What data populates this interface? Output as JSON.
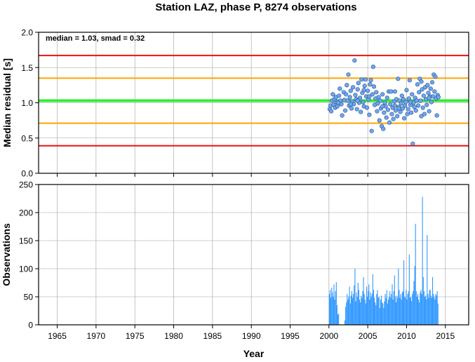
{
  "title": "Station LAZ, phase P, 8274 observations",
  "chart_data": [
    {
      "type": "scatter",
      "panel": "top",
      "ylabel": "Median residual [s]",
      "xlim": [
        1962.6,
        2018.0
      ],
      "ylim": [
        0.0,
        2.0
      ],
      "yticks": [
        0.0,
        0.5,
        1.0,
        1.5,
        2.0
      ],
      "ytick_labels": [
        "0.0",
        "0.5",
        "1.0",
        "1.5",
        "2.0"
      ],
      "grid": true,
      "annotation": "median = 1.03, smad = 0.32",
      "reference_lines": [
        {
          "y": 1.67,
          "color": "#ee1111"
        },
        {
          "y": 1.35,
          "color": "#ffa500"
        },
        {
          "y": 1.03,
          "color": "#33ee33"
        },
        {
          "y": 0.71,
          "color": "#ffa500"
        },
        {
          "y": 0.39,
          "color": "#ee1111"
        }
      ],
      "point_color": "#6ea6ee",
      "points": [
        [
          2000.1,
          0.91
        ],
        [
          2000.2,
          0.96
        ],
        [
          2000.3,
          0.88
        ],
        [
          2000.4,
          1.03
        ],
        [
          2000.5,
          1.12
        ],
        [
          2000.6,
          0.97
        ],
        [
          2000.7,
          1.05
        ],
        [
          2000.8,
          0.93
        ],
        [
          2000.9,
          1.08
        ],
        [
          2001.0,
          1.01
        ],
        [
          2001.1,
          0.95
        ],
        [
          2001.3,
          1.1
        ],
        [
          2001.4,
          1.2
        ],
        [
          2001.5,
          1.03
        ],
        [
          2001.6,
          0.98
        ],
        [
          2001.7,
          0.82
        ],
        [
          2001.9,
          1.15
        ],
        [
          2002.0,
          1.04
        ],
        [
          2002.1,
          0.89
        ],
        [
          2002.2,
          1.12
        ],
        [
          2002.3,
          1.25
        ],
        [
          2002.4,
          1.03
        ],
        [
          2002.5,
          1.4
        ],
        [
          2002.6,
          0.96
        ],
        [
          2002.7,
          1.08
        ],
        [
          2002.8,
          1.17
        ],
        [
          2002.9,
          0.92
        ],
        [
          2003.0,
          1.02
        ],
        [
          2003.1,
          1.22
        ],
        [
          2003.2,
          0.98
        ],
        [
          2003.3,
          1.6
        ],
        [
          2003.4,
          1.11
        ],
        [
          2003.5,
          1.05
        ],
        [
          2003.6,
          0.91
        ],
        [
          2003.7,
          1.19
        ],
        [
          2003.8,
          1.28
        ],
        [
          2003.9,
          1.0
        ],
        [
          2004.0,
          1.07
        ],
        [
          2004.1,
          0.87
        ],
        [
          2004.2,
          1.33
        ],
        [
          2004.3,
          1.14
        ],
        [
          2004.4,
          1.01
        ],
        [
          2004.5,
          0.95
        ],
        [
          2004.6,
          1.24
        ],
        [
          2004.7,
          1.33
        ],
        [
          2004.8,
          1.09
        ],
        [
          2004.9,
          0.93
        ],
        [
          2005.0,
          1.17
        ],
        [
          2005.1,
          1.05
        ],
        [
          2005.2,
          0.83
        ],
        [
          2005.3,
          1.26
        ],
        [
          2005.4,
          1.32
        ],
        [
          2005.5,
          0.6
        ],
        [
          2005.6,
          1.12
        ],
        [
          2005.7,
          1.51
        ],
        [
          2005.8,
          1.23
        ],
        [
          2005.9,
          0.97
        ],
        [
          2006.0,
          1.06
        ],
        [
          2006.1,
          1.15
        ],
        [
          2006.2,
          0.88
        ],
        [
          2006.3,
          0.99
        ],
        [
          2006.4,
          1.08
        ],
        [
          2006.5,
          0.75
        ],
        [
          2006.6,
          1.03
        ],
        [
          2006.7,
          0.92
        ],
        [
          2006.8,
          0.67
        ],
        [
          2006.9,
          1.12
        ],
        [
          2007.0,
          0.63
        ],
        [
          2007.1,
          0.86
        ],
        [
          2007.2,
          1.0
        ],
        [
          2007.3,
          0.95
        ],
        [
          2007.4,
          0.79
        ],
        [
          2007.5,
          1.07
        ],
        [
          2007.6,
          0.9
        ],
        [
          2007.7,
          1.16
        ],
        [
          2007.8,
          0.72
        ],
        [
          2007.9,
          0.98
        ],
        [
          2008.0,
          1.16
        ],
        [
          2008.1,
          0.84
        ],
        [
          2008.2,
          0.93
        ],
        [
          2008.3,
          0.77
        ],
        [
          2008.4,
          1.02
        ],
        [
          2008.5,
          0.96
        ],
        [
          2008.6,
          0.89
        ],
        [
          2008.7,
          1.05
        ],
        [
          2008.8,
          0.81
        ],
        [
          2008.9,
          1.34
        ],
        [
          2009.0,
          0.94
        ],
        [
          2009.1,
          1.03
        ],
        [
          2009.2,
          0.87
        ],
        [
          2009.3,
          0.99
        ],
        [
          2009.4,
          1.1
        ],
        [
          2009.5,
          0.92
        ],
        [
          2009.6,
          1.05
        ],
        [
          2009.7,
          0.78
        ],
        [
          2009.8,
          0.96
        ],
        [
          2009.9,
          1.01
        ],
        [
          2010.0,
          1.18
        ],
        [
          2010.1,
          0.84
        ],
        [
          2010.2,
          0.91
        ],
        [
          2010.3,
          1.06
        ],
        [
          2010.4,
          1.32
        ],
        [
          2010.5,
          0.97
        ],
        [
          2010.6,
          0.86
        ],
        [
          2010.7,
          1.12
        ],
        [
          2010.8,
          0.42
        ],
        [
          2010.9,
          1.0
        ],
        [
          2011.0,
          0.94
        ],
        [
          2011.1,
          1.07
        ],
        [
          2011.2,
          0.89
        ],
        [
          2011.3,
          1.03
        ],
        [
          2011.4,
          1.26
        ],
        [
          2011.5,
          0.96
        ],
        [
          2011.6,
          1.15
        ],
        [
          2011.7,
          1.34
        ],
        [
          2011.8,
          1.03
        ],
        [
          2011.9,
          0.81
        ],
        [
          2012.0,
          1.19
        ],
        [
          2012.1,
          0.93
        ],
        [
          2012.2,
          1.1
        ],
        [
          2012.3,
          0.84
        ],
        [
          2012.4,
          1.22
        ],
        [
          2012.5,
          1.05
        ],
        [
          2012.6,
          0.97
        ],
        [
          2012.7,
          1.25
        ],
        [
          2012.8,
          1.14
        ],
        [
          2012.9,
          0.88
        ],
        [
          2013.0,
          1.09
        ],
        [
          2013.1,
          1.2
        ],
        [
          2013.2,
          1.01
        ],
        [
          2013.3,
          1.29
        ],
        [
          2013.4,
          1.09
        ],
        [
          2013.5,
          1.4
        ],
        [
          2013.6,
          1.16
        ],
        [
          2013.7,
          1.37
        ],
        [
          2013.8,
          1.06
        ],
        [
          2013.9,
          0.82
        ],
        [
          2014.0,
          1.11
        ],
        [
          2014.1,
          1.08
        ],
        [
          2004.5,
          1.18
        ],
        [
          2006.9,
          0.95
        ],
        [
          2008.5,
          1.16
        ],
        [
          2011.9,
          1.3
        ],
        [
          2012.9,
          1.07
        ],
        [
          2003.7,
          1.03
        ],
        [
          2009.0,
          0.92
        ],
        [
          2010.5,
          1.01
        ],
        [
          2005.2,
          1.09
        ],
        [
          2001.2,
          1.0
        ],
        [
          2002.8,
          0.98
        ]
      ]
    },
    {
      "type": "bar",
      "panel": "bottom",
      "xlabel": "Year",
      "ylabel": "Observations",
      "xlim": [
        1962.6,
        2018.0
      ],
      "ylim": [
        0,
        250
      ],
      "xticks": [
        1965,
        1970,
        1975,
        1980,
        1985,
        1990,
        1995,
        2000,
        2005,
        2010,
        2015
      ],
      "xtick_labels": [
        "1965",
        "1970",
        "1975",
        "1980",
        "1985",
        "1990",
        "1995",
        "2000",
        "2005",
        "2010",
        "2015"
      ],
      "yticks": [
        0,
        50,
        100,
        150,
        200,
        250
      ],
      "ytick_labels": [
        "0",
        "50",
        "100",
        "150",
        "200",
        "250"
      ],
      "grid": true,
      "bar_color": "#3399ff",
      "bar_width": 0.1,
      "x": [
        2000.0,
        2000.1,
        2000.2,
        2000.3,
        2000.4,
        2000.5,
        2000.6,
        2000.7,
        2000.8,
        2000.9,
        2001.0,
        2001.1,
        2001.2,
        2001.3,
        2001.4,
        2001.5,
        2001.6,
        2001.7,
        2001.8,
        2001.9,
        2002.0,
        2002.1,
        2002.2,
        2002.3,
        2002.4,
        2002.5,
        2002.6,
        2002.7,
        2002.8,
        2002.9,
        2003.0,
        2003.1,
        2003.2,
        2003.3,
        2003.4,
        2003.5,
        2003.6,
        2003.7,
        2003.8,
        2003.9,
        2004.0,
        2004.1,
        2004.2,
        2004.3,
        2004.4,
        2004.5,
        2004.6,
        2004.7,
        2004.8,
        2004.9,
        2005.0,
        2005.1,
        2005.2,
        2005.3,
        2005.4,
        2005.5,
        2005.6,
        2005.7,
        2005.8,
        2005.9,
        2006.0,
        2006.1,
        2006.2,
        2006.3,
        2006.4,
        2006.5,
        2006.6,
        2006.7,
        2006.8,
        2006.9,
        2007.0,
        2007.1,
        2007.2,
        2007.3,
        2007.4,
        2007.5,
        2007.6,
        2007.7,
        2007.8,
        2007.9,
        2008.0,
        2008.1,
        2008.2,
        2008.3,
        2008.4,
        2008.5,
        2008.6,
        2008.7,
        2008.8,
        2008.9,
        2009.0,
        2009.1,
        2009.2,
        2009.3,
        2009.4,
        2009.5,
        2009.6,
        2009.7,
        2009.8,
        2009.9,
        2010.0,
        2010.1,
        2010.2,
        2010.3,
        2010.4,
        2010.5,
        2010.6,
        2010.7,
        2010.8,
        2010.9,
        2011.0,
        2011.1,
        2011.2,
        2011.3,
        2011.4,
        2011.5,
        2011.6,
        2011.7,
        2011.8,
        2011.9,
        2012.0,
        2012.1,
        2012.2,
        2012.3,
        2012.4,
        2012.5,
        2012.6,
        2012.7,
        2012.8,
        2012.9,
        2013.0,
        2013.1,
        2013.2,
        2013.3,
        2013.4,
        2013.5,
        2013.6,
        2013.7,
        2013.8,
        2013.9,
        2014.0
      ],
      "values": [
        55,
        62,
        48,
        66,
        58,
        50,
        72,
        45,
        60,
        76,
        35,
        18,
        20,
        0,
        0,
        0,
        0,
        0,
        0,
        0,
        8,
        32,
        40,
        55,
        45,
        50,
        68,
        38,
        52,
        60,
        48,
        55,
        70,
        100,
        42,
        58,
        50,
        75,
        62,
        45,
        40,
        52,
        48,
        60,
        85,
        55,
        45,
        38,
        68,
        50,
        60,
        72,
        45,
        58,
        50,
        55,
        90,
        62,
        48,
        40,
        35,
        55,
        62,
        48,
        50,
        30,
        45,
        52,
        40,
        38,
        30,
        42,
        55,
        48,
        62,
        38,
        45,
        50,
        60,
        48,
        55,
        72,
        45,
        60,
        88,
        50,
        40,
        52,
        48,
        100,
        62,
        48,
        55,
        45,
        58,
        60,
        115,
        50,
        48,
        62,
        45,
        55,
        60,
        125,
        48,
        50,
        42,
        55,
        60,
        78,
        105,
        180,
        60,
        50,
        55,
        45,
        40,
        58,
        62,
        55,
        228,
        85,
        60,
        50,
        52,
        45,
        160,
        55,
        48,
        62,
        62,
        52,
        48,
        85,
        55,
        50,
        45,
        55,
        52,
        60,
        38
      ]
    }
  ]
}
